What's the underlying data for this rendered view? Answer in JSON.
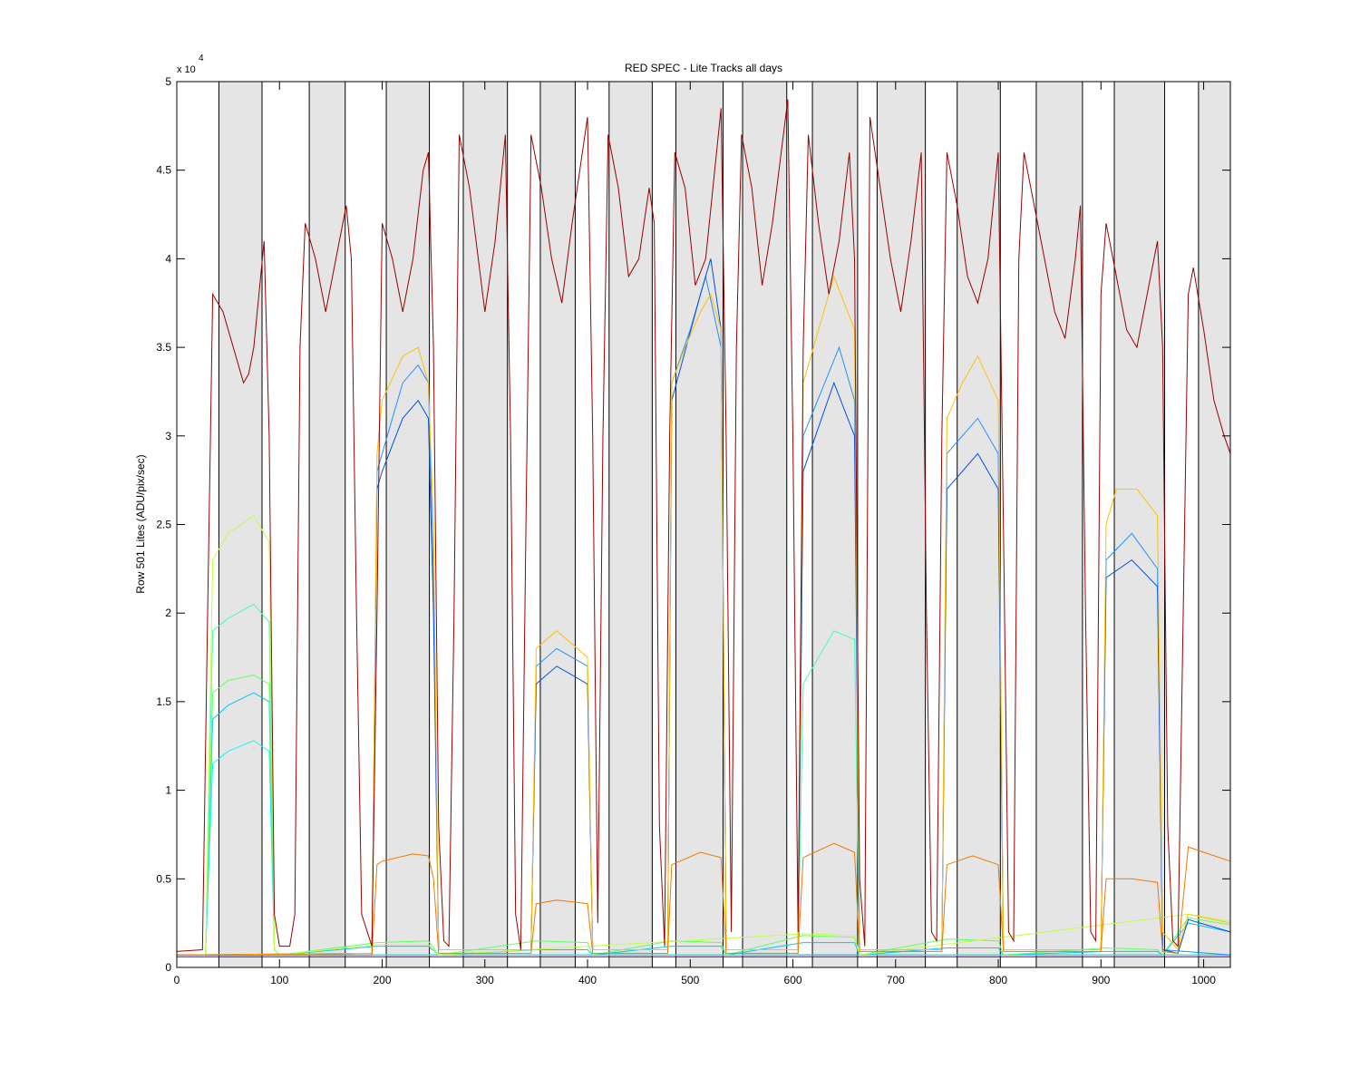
{
  "chart_data": {
    "type": "line",
    "title": "RED SPEC - Lite Tracks all days",
    "y_label": "Row 501 Lites (ADU/pix/sec)",
    "y_multiplier": {
      "base": "x 10",
      "exponent": "4"
    },
    "xlim": [
      0,
      1026
    ],
    "ylim": [
      0,
      50000
    ],
    "xticks": [
      0,
      100,
      200,
      300,
      400,
      500,
      600,
      700,
      800,
      900,
      1000
    ],
    "yticks": [
      {
        "value": 0,
        "label": "0"
      },
      {
        "value": 5000,
        "label": "0.5"
      },
      {
        "value": 10000,
        "label": "1"
      },
      {
        "value": 15000,
        "label": "1.5"
      },
      {
        "value": 20000,
        "label": "2"
      },
      {
        "value": 25000,
        "label": "2.5"
      },
      {
        "value": 30000,
        "label": "3"
      },
      {
        "value": 35000,
        "label": "3.5"
      },
      {
        "value": 40000,
        "label": "4"
      },
      {
        "value": 45000,
        "label": "4.5"
      },
      {
        "value": 50000,
        "label": "5"
      }
    ],
    "bands": [
      [
        41,
        83
      ],
      [
        129,
        164
      ],
      [
        204,
        246
      ],
      [
        279,
        322
      ],
      [
        354,
        388
      ],
      [
        421,
        463
      ],
      [
        486,
        532
      ],
      [
        551,
        594
      ],
      [
        619,
        663
      ],
      [
        682,
        729
      ],
      [
        760,
        802
      ],
      [
        837,
        882
      ],
      [
        913,
        962
      ],
      [
        995,
        1026
      ]
    ],
    "band_color": "#e5e5e5",
    "series": [
      {
        "color": "#5000a0",
        "x": [
          0,
          1026
        ],
        "values": [
          600,
          600
        ]
      },
      {
        "color": "#00007f",
        "x": [
          0,
          1026
        ],
        "values": [
          700,
          700
        ]
      },
      {
        "color": "#00ffff",
        "x": [
          0,
          28,
          35,
          50,
          75,
          90,
          95,
          100,
          1026
        ],
        "values": [
          700,
          700,
          11500,
          12200,
          12800,
          12200,
          1000,
          700,
          700
        ]
      },
      {
        "color": "#10c0ff",
        "x": [
          0,
          28,
          35,
          50,
          75,
          90,
          95,
          100,
          195,
          245,
          255,
          350,
          400,
          405,
          482,
          530,
          535,
          610,
          660,
          665,
          750,
          800,
          805,
          905,
          955,
          960,
          985,
          1026
        ],
        "values": [
          700,
          700,
          14000,
          14800,
          15500,
          15000,
          1000,
          700,
          1200,
          1200,
          700,
          1000,
          1000,
          700,
          1200,
          1200,
          700,
          1400,
          1400,
          700,
          1100,
          1100,
          700,
          900,
          900,
          700,
          2500,
          2000
        ]
      },
      {
        "color": "#60ff60",
        "x": [
          0,
          28,
          35,
          50,
          75,
          90,
          95,
          100,
          195,
          245,
          255,
          350,
          400,
          405,
          482,
          530,
          535,
          610,
          660,
          665,
          750,
          800,
          805,
          905,
          955,
          960,
          985,
          1026
        ],
        "values": [
          700,
          700,
          15500,
          16200,
          16500,
          16000,
          1000,
          700,
          1400,
          1500,
          700,
          1500,
          1400,
          700,
          1500,
          1400,
          700,
          1800,
          1700,
          700,
          1600,
          1500,
          700,
          1100,
          1000,
          700,
          2800,
          2400
        ]
      },
      {
        "color": "#40ffb0",
        "x": [
          0,
          28,
          35,
          50,
          75,
          90,
          95,
          100,
          605,
          610,
          625,
          640,
          660,
          665,
          1026
        ],
        "values": [
          700,
          700,
          19000,
          19700,
          20500,
          19500,
          1000,
          700,
          700,
          16000,
          17500,
          19000,
          18500,
          700,
          700
        ]
      },
      {
        "color": "#c0ff40",
        "x": [
          0,
          28,
          35,
          50,
          75,
          90,
          95,
          100,
          195,
          245,
          255,
          610,
          660,
          665,
          985,
          1026
        ],
        "values": [
          700,
          700,
          23000,
          24500,
          25500,
          24000,
          1000,
          700,
          1300,
          1300,
          700,
          1900,
          1800,
          700,
          3000,
          2600
        ]
      },
      {
        "color": "#2090ff",
        "x": [
          0,
          190,
          195,
          220,
          235,
          245,
          250,
          255,
          345,
          350,
          370,
          400,
          405,
          478,
          482,
          500,
          515,
          530,
          535,
          605,
          610,
          645,
          660,
          665,
          745,
          750,
          780,
          800,
          805,
          900,
          905,
          930,
          955,
          960,
          1026
        ],
        "values": [
          700,
          800,
          28000,
          33000,
          34000,
          33000,
          22000,
          1000,
          1000,
          17000,
          18000,
          17000,
          1000,
          1000,
          33000,
          36000,
          39000,
          35000,
          1000,
          1000,
          30000,
          35000,
          32000,
          1000,
          1000,
          29000,
          31000,
          29000,
          1000,
          1000,
          23000,
          24500,
          22500,
          1000,
          700
        ]
      },
      {
        "color": "#0050e0",
        "x": [
          0,
          190,
          195,
          200,
          220,
          235,
          245,
          250,
          255,
          345,
          350,
          370,
          400,
          405,
          478,
          482,
          510,
          520,
          530,
          535,
          605,
          610,
          640,
          660,
          665,
          745,
          750,
          780,
          800,
          805,
          900,
          905,
          930,
          955,
          960,
          975,
          985,
          1026
        ],
        "values": [
          700,
          800,
          27000,
          28000,
          31000,
          32000,
          31000,
          20000,
          1000,
          1000,
          16000,
          17000,
          16000,
          1000,
          1000,
          32000,
          38000,
          40000,
          36000,
          1000,
          1000,
          28000,
          33000,
          30000,
          1000,
          1000,
          27000,
          29000,
          27000,
          1000,
          1000,
          22000,
          23000,
          21500,
          1000,
          800,
          2700,
          2000
        ]
      },
      {
        "color": "#ffc000",
        "x": [
          0,
          190,
          195,
          200,
          220,
          235,
          245,
          250,
          255,
          345,
          350,
          370,
          400,
          405,
          478,
          482,
          495,
          510,
          520,
          530,
          535,
          605,
          610,
          620,
          640,
          660,
          665,
          745,
          750,
          765,
          780,
          800,
          805,
          900,
          905,
          915,
          935,
          955,
          960,
          975,
          985,
          1026
        ],
        "values": [
          700,
          800,
          29000,
          32000,
          34500,
          35000,
          33000,
          25000,
          1000,
          1000,
          18000,
          19000,
          17500,
          1000,
          1000,
          33000,
          35000,
          37000,
          38000,
          36000,
          1000,
          1000,
          33000,
          35000,
          39000,
          36000,
          1000,
          1000,
          31000,
          33000,
          34500,
          32000,
          1000,
          1000,
          25000,
          27000,
          27000,
          25500,
          2000,
          1000,
          3000,
          2500
        ]
      },
      {
        "color": "#f07800",
        "x": [
          0,
          190,
          195,
          200,
          230,
          245,
          250,
          255,
          345,
          350,
          370,
          400,
          405,
          478,
          482,
          510,
          530,
          535,
          605,
          610,
          640,
          660,
          665,
          745,
          750,
          775,
          800,
          805,
          900,
          905,
          930,
          955,
          960,
          975,
          985,
          1000,
          1026
        ],
        "values": [
          700,
          700,
          5800,
          6000,
          6400,
          6300,
          5000,
          800,
          800,
          3600,
          3800,
          3600,
          800,
          800,
          5800,
          6500,
          6200,
          800,
          800,
          6200,
          7000,
          6500,
          900,
          900,
          5800,
          6300,
          5800,
          900,
          900,
          5000,
          5000,
          4800,
          900,
          800,
          6800,
          6500,
          6000
        ]
      },
      {
        "color": "#990000",
        "x": [
          0,
          25,
          30,
          35,
          45,
          55,
          65,
          70,
          75,
          85,
          90,
          95,
          100,
          110,
          115,
          120,
          125,
          135,
          145,
          155,
          165,
          170,
          175,
          180,
          190,
          195,
          200,
          210,
          220,
          230,
          240,
          245,
          250,
          255,
          260,
          265,
          270,
          275,
          285,
          300,
          310,
          320,
          325,
          330,
          335,
          340,
          345,
          355,
          365,
          375,
          385,
          400,
          405,
          410,
          415,
          420,
          430,
          440,
          450,
          460,
          465,
          470,
          475,
          480,
          485,
          495,
          505,
          515,
          530,
          535,
          540,
          545,
          550,
          560,
          570,
          580,
          595,
          600,
          605,
          610,
          615,
          625,
          635,
          645,
          655,
          660,
          665,
          670,
          675,
          685,
          695,
          705,
          715,
          725,
          730,
          735,
          740,
          745,
          750,
          760,
          770,
          780,
          790,
          800,
          805,
          810,
          815,
          820,
          825,
          835,
          845,
          855,
          865,
          875,
          880,
          885,
          890,
          895,
          900,
          905,
          915,
          925,
          935,
          945,
          955,
          960,
          965,
          970,
          975,
          985,
          990,
          1000,
          1010,
          1020,
          1026
        ],
        "values": [
          900,
          1000,
          20000,
          38000,
          37000,
          35000,
          33000,
          33500,
          35000,
          41000,
          30000,
          3000,
          1200,
          1200,
          3000,
          35000,
          42000,
          40000,
          37000,
          40000,
          43000,
          40000,
          20000,
          3000,
          1200,
          20000,
          42000,
          40000,
          37000,
          40000,
          45000,
          46000,
          35000,
          8000,
          1500,
          1200,
          20000,
          47000,
          44000,
          37000,
          41000,
          47000,
          30000,
          3000,
          1000,
          25000,
          47000,
          44000,
          40000,
          37500,
          42000,
          48000,
          30000,
          2500,
          30000,
          47000,
          44000,
          39000,
          40000,
          44000,
          42000,
          8000,
          1200,
          30000,
          46000,
          44000,
          38500,
          40000,
          48500,
          30000,
          2000,
          35000,
          47000,
          44000,
          38500,
          42000,
          49000,
          30000,
          2000,
          35000,
          47000,
          42000,
          38000,
          41000,
          46000,
          40000,
          5000,
          1200,
          48000,
          44000,
          40000,
          37000,
          41000,
          46000,
          20000,
          2000,
          1500,
          30000,
          46000,
          43000,
          39000,
          37500,
          40000,
          46000,
          25000,
          2000,
          1500,
          40000,
          46000,
          43000,
          40000,
          37000,
          35500,
          40000,
          43000,
          20000,
          2000,
          1500,
          38000,
          42000,
          39000,
          36000,
          35000,
          38000,
          41000,
          35000,
          8000,
          1500,
          1200,
          38000,
          39500,
          36000,
          32000,
          30000,
          29000
        ]
      }
    ]
  }
}
